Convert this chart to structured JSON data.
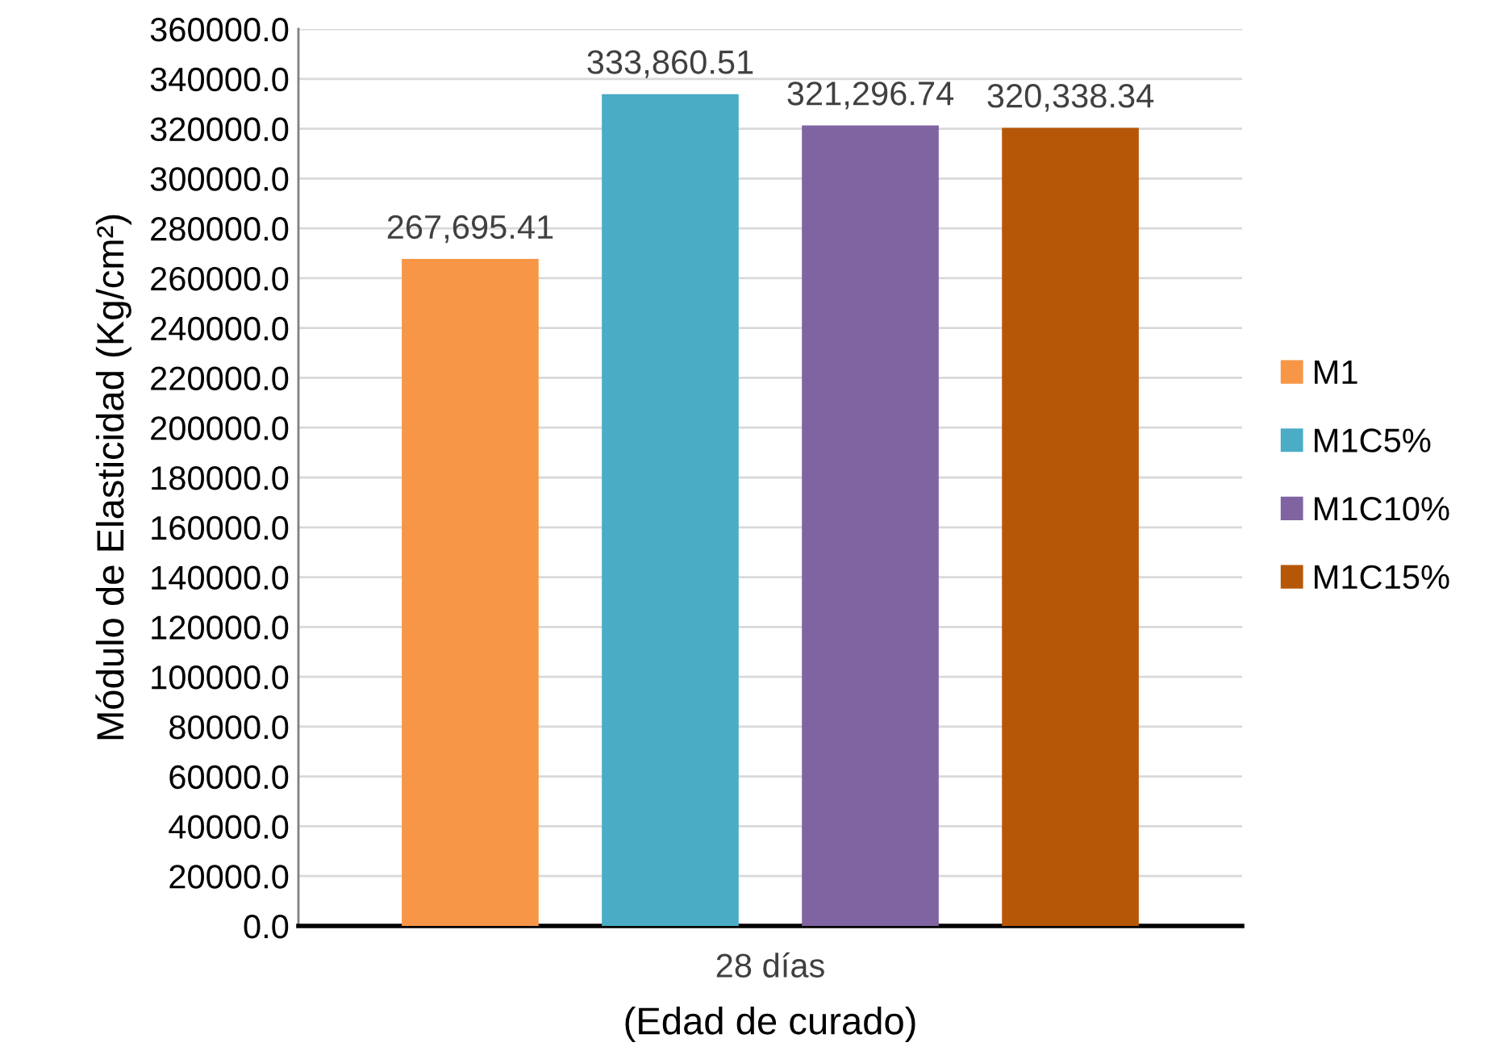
{
  "chart_data": {
    "type": "bar",
    "xlabel": "(Edad de curado)",
    "ylabel": "Módulo de Elasticidad (Kg/cm²)",
    "categories": [
      "28 días"
    ],
    "series": [
      {
        "name": "M1",
        "color": "#f79646",
        "values": [
          267695.41
        ],
        "value_labels": [
          "267,695.41"
        ]
      },
      {
        "name": "M1C5%",
        "color": "#4bacc6",
        "values": [
          333860.51
        ],
        "value_labels": [
          "333,860.51"
        ]
      },
      {
        "name": "M1C10%",
        "color": "#8064a2",
        "values": [
          321296.74
        ],
        "value_labels": [
          "321,296.74"
        ]
      },
      {
        "name": "M1C15%",
        "color": "#b65708",
        "values": [
          320338.34
        ],
        "value_labels": [
          "320,338.34"
        ]
      }
    ],
    "ylim": [
      0,
      360000
    ],
    "yticks": [
      {
        "value": 0,
        "label": "0.0"
      },
      {
        "value": 20000,
        "label": "20000.0"
      },
      {
        "value": 40000,
        "label": "40000.0"
      },
      {
        "value": 60000,
        "label": "60000.0"
      },
      {
        "value": 80000,
        "label": "80000.0"
      },
      {
        "value": 100000,
        "label": "100000.0"
      },
      {
        "value": 120000,
        "label": "120000.0"
      },
      {
        "value": 140000,
        "label": "140000.0"
      },
      {
        "value": 160000,
        "label": "160000.0"
      },
      {
        "value": 180000,
        "label": "180000.0"
      },
      {
        "value": 200000,
        "label": "200000.0"
      },
      {
        "value": 220000,
        "label": "220000.0"
      },
      {
        "value": 240000,
        "label": "240000.0"
      },
      {
        "value": 260000,
        "label": "260000.0"
      },
      {
        "value": 280000,
        "label": "280000.0"
      },
      {
        "value": 300000,
        "label": "300000.0"
      },
      {
        "value": 320000,
        "label": "320000.0"
      },
      {
        "value": 340000,
        "label": "340000.0"
      },
      {
        "value": 360000,
        "label": "360000.0"
      }
    ],
    "grid": "y",
    "legend": "right"
  }
}
